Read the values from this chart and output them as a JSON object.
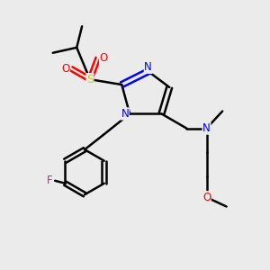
{
  "background_color": "#ebebeb",
  "atom_colors": {
    "N": "#0000ff",
    "O": "#ff0000",
    "S": "#cccc00",
    "F": "#ff00aa",
    "C": "#000000"
  },
  "bond_color": "#000000",
  "bond_width": 1.8,
  "figsize": [
    3.0,
    3.0
  ],
  "dpi": 100
}
